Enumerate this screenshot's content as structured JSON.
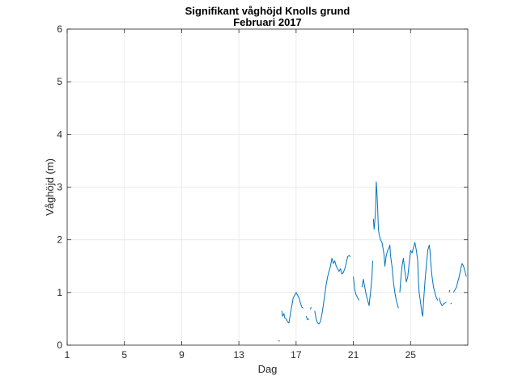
{
  "chart_data": {
    "type": "line",
    "title": "Signifikant våghöjd Knolls grund",
    "subtitle": "Februari 2017",
    "xlabel": "Dag",
    "ylabel": "Våghöjd (m)",
    "xlim": [
      1,
      29
    ],
    "ylim": [
      0,
      6
    ],
    "grid": true,
    "line_color": "#0072BD",
    "xticks": [
      1,
      5,
      9,
      13,
      17,
      21,
      25
    ],
    "yticks": [
      0,
      1,
      2,
      3,
      4,
      5,
      6
    ],
    "series": [
      {
        "segments": [
          [
            [
              15.8,
              0.08
            ]
          ],
          [
            [
              16.0,
              0.65
            ],
            [
              16.05,
              0.55
            ],
            [
              16.15,
              0.6
            ],
            [
              16.2,
              0.52
            ],
            [
              16.3,
              0.5
            ],
            [
              16.4,
              0.45
            ],
            [
              16.5,
              0.42
            ],
            [
              16.6,
              0.6
            ],
            [
              16.7,
              0.75
            ],
            [
              16.8,
              0.9
            ],
            [
              16.9,
              0.95
            ],
            [
              17.0,
              1.0
            ],
            [
              17.1,
              0.95
            ],
            [
              17.2,
              0.9
            ],
            [
              17.3,
              0.8
            ],
            [
              17.4,
              0.72
            ],
            [
              17.5,
              0.7
            ]
          ],
          [
            [
              17.7,
              0.55
            ],
            [
              17.8,
              0.48
            ],
            [
              17.9,
              0.5
            ]
          ],
          [
            [
              18.0,
              0.68
            ],
            [
              18.05,
              0.72
            ]
          ],
          [
            [
              18.3,
              0.65
            ],
            [
              18.4,
              0.5
            ],
            [
              18.5,
              0.42
            ],
            [
              18.6,
              0.4
            ],
            [
              18.7,
              0.45
            ],
            [
              18.8,
              0.58
            ],
            [
              18.9,
              0.75
            ],
            [
              19.0,
              0.95
            ],
            [
              19.1,
              1.15
            ],
            [
              19.2,
              1.3
            ],
            [
              19.3,
              1.4
            ],
            [
              19.4,
              1.5
            ],
            [
              19.5,
              1.65
            ],
            [
              19.6,
              1.55
            ],
            [
              19.7,
              1.6
            ],
            [
              19.8,
              1.5
            ],
            [
              19.9,
              1.45
            ],
            [
              20.0,
              1.4
            ],
            [
              20.1,
              1.45
            ],
            [
              20.2,
              1.35
            ],
            [
              20.3,
              1.38
            ],
            [
              20.4,
              1.45
            ],
            [
              20.5,
              1.55
            ],
            [
              20.6,
              1.68
            ],
            [
              20.7,
              1.7
            ],
            [
              20.8,
              1.68
            ]
          ],
          [
            [
              21.0,
              1.3
            ],
            [
              21.1,
              1.05
            ],
            [
              21.2,
              0.95
            ],
            [
              21.3,
              0.9
            ],
            [
              21.4,
              0.85
            ]
          ],
          [
            [
              21.6,
              1.1
            ],
            [
              21.7,
              1.25
            ],
            [
              21.8,
              1.1
            ],
            [
              21.9,
              0.95
            ],
            [
              22.0,
              0.85
            ],
            [
              22.1,
              0.75
            ],
            [
              22.2,
              1.0
            ],
            [
              22.3,
              1.3
            ],
            [
              22.35,
              1.6
            ]
          ],
          [
            [
              22.4,
              2.4
            ],
            [
              22.45,
              2.2
            ],
            [
              22.5,
              2.35
            ],
            [
              22.55,
              2.55
            ],
            [
              22.6,
              3.1
            ],
            [
              22.65,
              2.9
            ],
            [
              22.7,
              2.6
            ],
            [
              22.75,
              2.2
            ],
            [
              22.8,
              2.1
            ],
            [
              22.9,
              2.0
            ],
            [
              23.0,
              1.95
            ],
            [
              23.1,
              1.8
            ],
            [
              23.15,
              1.7
            ],
            [
              23.2,
              1.5
            ],
            [
              23.3,
              1.7
            ],
            [
              23.4,
              1.8
            ],
            [
              23.5,
              1.85
            ],
            [
              23.55,
              1.9
            ],
            [
              23.6,
              1.7
            ],
            [
              23.7,
              1.5
            ],
            [
              23.8,
              1.2
            ],
            [
              23.9,
              1.0
            ],
            [
              24.0,
              0.85
            ],
            [
              24.1,
              0.75
            ],
            [
              24.15,
              0.7
            ]
          ],
          [
            [
              24.25,
              1.0
            ],
            [
              24.3,
              1.2
            ],
            [
              24.4,
              1.5
            ],
            [
              24.5,
              1.65
            ],
            [
              24.6,
              1.4
            ],
            [
              24.7,
              1.2
            ],
            [
              24.8,
              1.3
            ],
            [
              24.9,
              1.55
            ],
            [
              25.0,
              1.8
            ],
            [
              25.1,
              1.75
            ],
            [
              25.2,
              1.85
            ],
            [
              25.3,
              1.95
            ],
            [
              25.4,
              1.8
            ],
            [
              25.5,
              1.6
            ],
            [
              25.55,
              1.2
            ],
            [
              25.6,
              1.0
            ],
            [
              25.7,
              0.8
            ],
            [
              25.8,
              0.6
            ],
            [
              25.85,
              0.55
            ],
            [
              25.9,
              0.8
            ],
            [
              26.0,
              1.2
            ],
            [
              26.1,
              1.5
            ],
            [
              26.2,
              1.8
            ],
            [
              26.3,
              1.9
            ],
            [
              26.35,
              1.8
            ],
            [
              26.4,
              1.6
            ],
            [
              26.5,
              1.3
            ],
            [
              26.6,
              1.1
            ],
            [
              26.7,
              1.0
            ],
            [
              26.8,
              0.9
            ],
            [
              26.9,
              0.85
            ]
          ],
          [
            [
              27.0,
              0.9
            ],
            [
              27.1,
              0.8
            ],
            [
              27.2,
              0.75
            ],
            [
              27.3,
              0.78
            ],
            [
              27.4,
              0.8
            ],
            [
              27.5,
              0.82
            ]
          ],
          [
            [
              27.7,
              1.0
            ],
            [
              27.75,
              1.05
            ]
          ],
          [
            [
              27.8,
              0.78
            ],
            [
              27.85,
              0.8
            ]
          ],
          [
            [
              28.0,
              1.0
            ],
            [
              28.1,
              1.05
            ],
            [
              28.2,
              1.1
            ],
            [
              28.3,
              1.2
            ],
            [
              28.4,
              1.3
            ],
            [
              28.5,
              1.45
            ],
            [
              28.6,
              1.55
            ],
            [
              28.7,
              1.5
            ],
            [
              28.8,
              1.4
            ],
            [
              28.9,
              1.3
            ]
          ]
        ]
      }
    ]
  }
}
